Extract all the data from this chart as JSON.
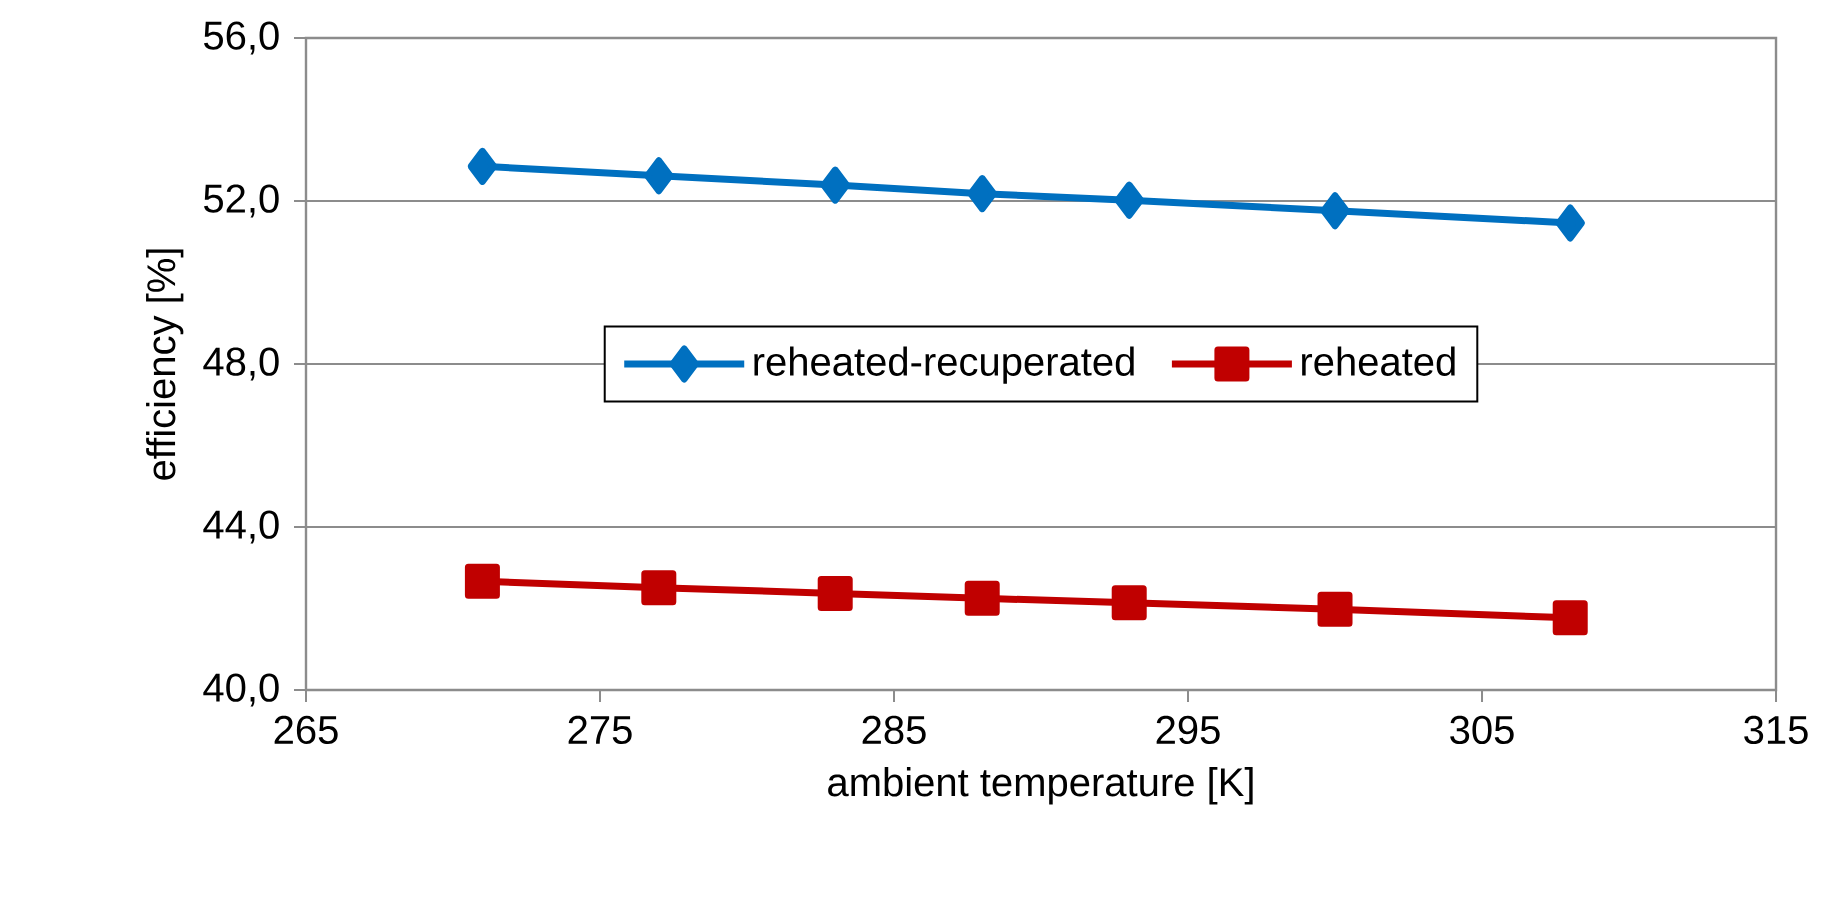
{
  "chart_data": {
    "type": "line",
    "xlabel": "ambient temperature [K]",
    "ylabel": "efficiency  [%]",
    "x": [
      271,
      277,
      283,
      288,
      293,
      300,
      308
    ],
    "series": [
      {
        "name": "reheated-recuperated",
        "color": "#0070c0",
        "marker": "diamond",
        "values": [
          52.85,
          52.62,
          52.39,
          52.18,
          52.02,
          51.76,
          51.46
        ]
      },
      {
        "name": "reheated",
        "color": "#c00000",
        "marker": "square",
        "values": [
          42.67,
          42.51,
          42.37,
          42.25,
          42.14,
          41.98,
          41.77
        ]
      }
    ],
    "xlim": [
      265,
      315
    ],
    "xticks": [
      265,
      275,
      285,
      295,
      305,
      315
    ],
    "ylim": [
      40,
      56
    ],
    "yticks": [
      {
        "value": 40,
        "label": "40,0"
      },
      {
        "value": 44,
        "label": "44,0"
      },
      {
        "value": 48,
        "label": "48,0"
      },
      {
        "value": 52,
        "label": "52,0"
      },
      {
        "value": 56,
        "label": "56,0"
      }
    ],
    "grid": "y",
    "legend": "center",
    "line_style": "solid"
  }
}
